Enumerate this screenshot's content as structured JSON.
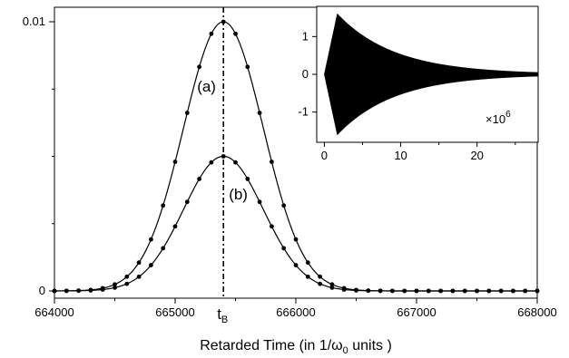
{
  "chart_data": [
    {
      "type": "line",
      "xlabel": "Retarded Time (in 1/ω",
      "xlabel_sub": "0",
      "xlabel_suffix": " units )",
      "ylabel": "",
      "xlim": [
        664000,
        668000
      ],
      "ylim": [
        0,
        0.01
      ],
      "xticks": [
        664000,
        665000,
        666000,
        667000,
        668000
      ],
      "xtick_labels": [
        "664000",
        "665000",
        "666000",
        "667000",
        "668000"
      ],
      "yticks": [
        0,
        0.01
      ],
      "ytick_labels": [
        "0",
        "0.01"
      ],
      "grid": false,
      "vertical_marker": {
        "x": 665400,
        "label": "t",
        "label_sub": "B",
        "style": "dash-dot"
      },
      "series": [
        {
          "name": "(a)",
          "shape": "gaussian",
          "center": 665400,
          "peak": 0.01,
          "sigma": 330,
          "markers": "filled-circles"
        },
        {
          "name": "(b)",
          "shape": "gaussian",
          "center": 665400,
          "peak": 0.005,
          "sigma": 330,
          "markers": "filled-circles"
        }
      ],
      "marker_x_start": 664000,
      "marker_x_step": 100,
      "marker_x_end": 668000
    },
    {
      "type": "area",
      "inset": true,
      "xlim": [
        -1,
        28
      ],
      "ylim": [
        -1.8,
        1.8
      ],
      "xticks": [
        0,
        10,
        20
      ],
      "xtick_labels": [
        "0",
        "10",
        "20"
      ],
      "yticks": [
        -1,
        0,
        1
      ],
      "ytick_labels": [
        "-1",
        "0",
        "1"
      ],
      "envelope": {
        "rise_end_x": 1.7,
        "peak": 1.6,
        "decay_scale": 7.5
      },
      "annotation": {
        "text": "×10",
        "superscript": "6"
      }
    }
  ]
}
